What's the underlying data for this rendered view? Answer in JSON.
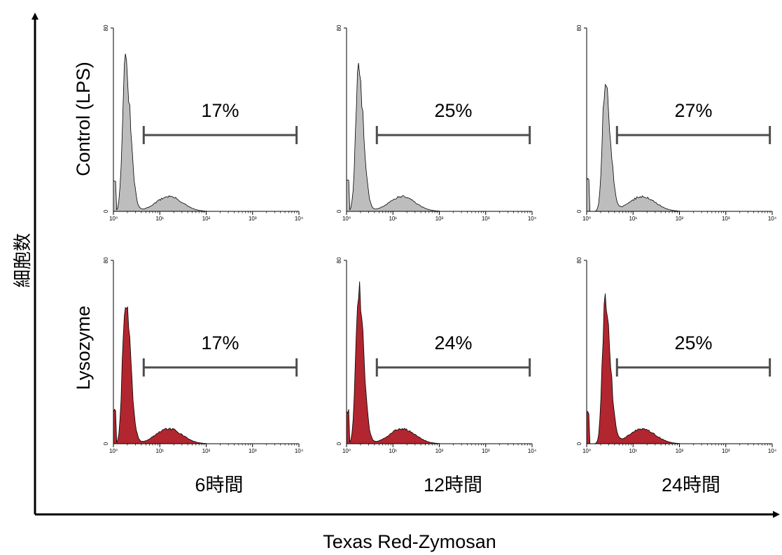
{
  "chart_data": {
    "type": "area",
    "title": "",
    "xlabel": "Texas Red-Zymosan",
    "ylabel": "細胞数",
    "x_scale": "log",
    "xlim": [
      1,
      10000
    ],
    "ylim": [
      0,
      80
    ],
    "x_ticks": [
      "10⁰",
      "10¹",
      "10²",
      "10³",
      "10⁴"
    ],
    "y_ticks": [
      "0",
      "80"
    ],
    "rows": [
      "Control (LPS)",
      "Lysozyme"
    ],
    "columns": [
      "6時間",
      "12時間",
      "24時間"
    ],
    "colors": {
      "Control (LPS)": "#bdbdbd",
      "Lysozyme": "#b2262f"
    },
    "gate": {
      "from": 4.5,
      "to": 8900
    },
    "panels": [
      {
        "row": "Control (LPS)",
        "column": "6時間",
        "percent": "17%",
        "peak_x": 1.8,
        "peak_y": 64
      },
      {
        "row": "Control (LPS)",
        "column": "12時間",
        "percent": "25%",
        "peak_x": 1.8,
        "peak_y": 60
      },
      {
        "row": "Control (LPS)",
        "column": "24時間",
        "percent": "27%",
        "peak_x": 2.5,
        "peak_y": 55
      },
      {
        "row": "Lysozyme",
        "column": "6時間",
        "percent": "17%",
        "peak_x": 1.8,
        "peak_y": 64
      },
      {
        "row": "Lysozyme",
        "column": "12時間",
        "percent": "24%",
        "peak_x": 1.8,
        "peak_y": 68
      },
      {
        "row": "Lysozyme",
        "column": "24時間",
        "percent": "25%",
        "peak_x": 2.5,
        "peak_y": 64
      }
    ]
  }
}
